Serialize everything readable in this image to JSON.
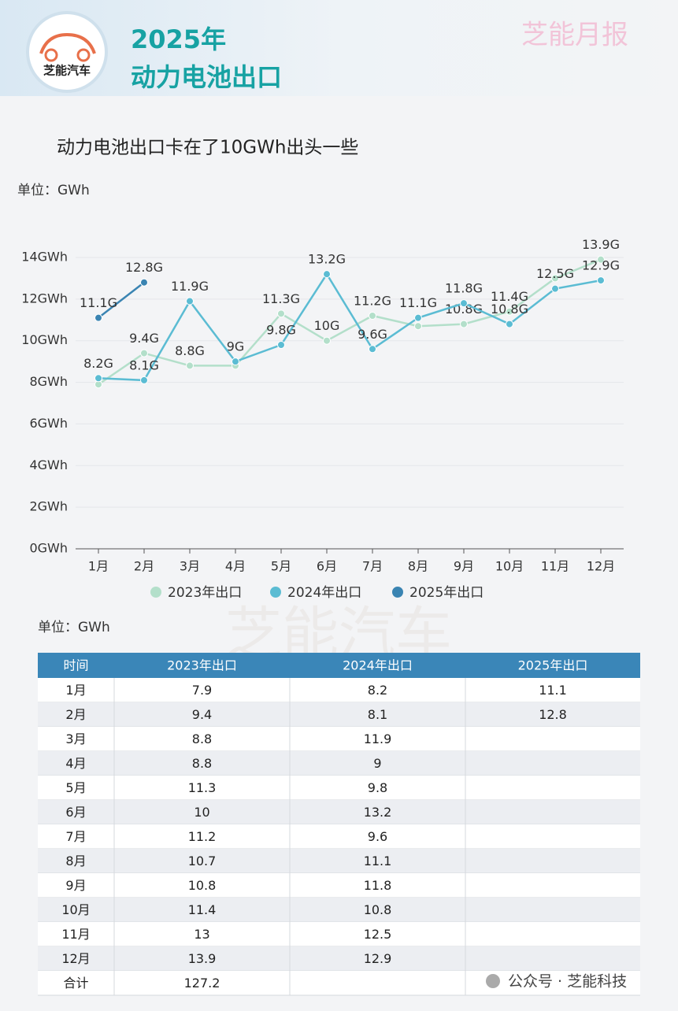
{
  "header": {
    "title_line1": "2025年",
    "title_line2": "动力电池出口",
    "brand": "芝能月报",
    "logo_text": "芝能汽车"
  },
  "chart_data": {
    "type": "line",
    "title": "动力电池出口卡在了10GWh出头一些",
    "unit_label": "单位：GWh",
    "categories": [
      "1月",
      "2月",
      "3月",
      "4月",
      "5月",
      "6月",
      "7月",
      "8月",
      "9月",
      "10月",
      "11月",
      "12月"
    ],
    "series": [
      {
        "name": "2023年出口",
        "color": "#b3dfca",
        "values": [
          7.9,
          9.4,
          8.8,
          8.8,
          11.3,
          10,
          11.2,
          10.7,
          10.8,
          11.4,
          13,
          13.9
        ],
        "value_labels": [
          null,
          "9.4G",
          "8.8G",
          null,
          "11.3G",
          "10G",
          "11.2G",
          null,
          "10.8G",
          "11.4G",
          null,
          "13.9G"
        ]
      },
      {
        "name": "2024年出口",
        "color": "#5bbcd3",
        "values": [
          8.2,
          8.1,
          11.9,
          9,
          9.8,
          13.2,
          9.6,
          11.1,
          11.8,
          10.8,
          12.5,
          12.9
        ],
        "value_labels": [
          "8.2G",
          "8.1G",
          "11.9G",
          "9G",
          "9.8G",
          "13.2G",
          "9.6G",
          "11.1G",
          "11.8G",
          "10.8G",
          "12.5G",
          "12.9G"
        ]
      },
      {
        "name": "2025年出口",
        "color": "#3a84b2",
        "values": [
          11.1,
          12.8,
          null,
          null,
          null,
          null,
          null,
          null,
          null,
          null,
          null,
          null
        ],
        "value_labels": [
          "11.1G",
          "12.8G",
          null,
          null,
          null,
          null,
          null,
          null,
          null,
          null,
          null,
          null
        ]
      }
    ],
    "ylim": [
      0,
      14
    ],
    "yticks": [
      {
        "value": 0,
        "label": "0GWh"
      },
      {
        "value": 2,
        "label": "2GWh"
      },
      {
        "value": 4,
        "label": "4GWh"
      },
      {
        "value": 6,
        "label": "6GWh"
      },
      {
        "value": 8,
        "label": "8GWh"
      },
      {
        "value": 10,
        "label": "10GWh"
      },
      {
        "value": 12,
        "label": "12GWh"
      },
      {
        "value": 14,
        "label": "14GWh"
      }
    ],
    "grid": true,
    "legend": "bottom"
  },
  "watermark": "芝能汽车",
  "table": {
    "unit_label": "单位：GWh",
    "header": [
      "时间",
      "2023年出口",
      "2024年出口",
      "2025年出口"
    ],
    "rows": [
      [
        "1月",
        "7.9",
        "8.2",
        "11.1"
      ],
      [
        "2月",
        "9.4",
        "8.1",
        "12.8"
      ],
      [
        "3月",
        "8.8",
        "11.9"
      ],
      [
        "4月",
        "8.8",
        "9"
      ],
      [
        "5月",
        "11.3",
        "9.8"
      ],
      [
        "6月",
        "10",
        "13.2"
      ],
      [
        "7月",
        "11.2",
        "9.6"
      ],
      [
        "8月",
        "10.7",
        "11.1"
      ],
      [
        "9月",
        "10.8",
        "11.8"
      ],
      [
        "10月",
        "11.4",
        "10.8"
      ],
      [
        "11月",
        "13",
        "12.5"
      ],
      [
        "12月",
        "13.9",
        "12.9"
      ],
      [
        "合计",
        "127.2"
      ]
    ]
  },
  "footer": "公众号 · 芝能科技"
}
